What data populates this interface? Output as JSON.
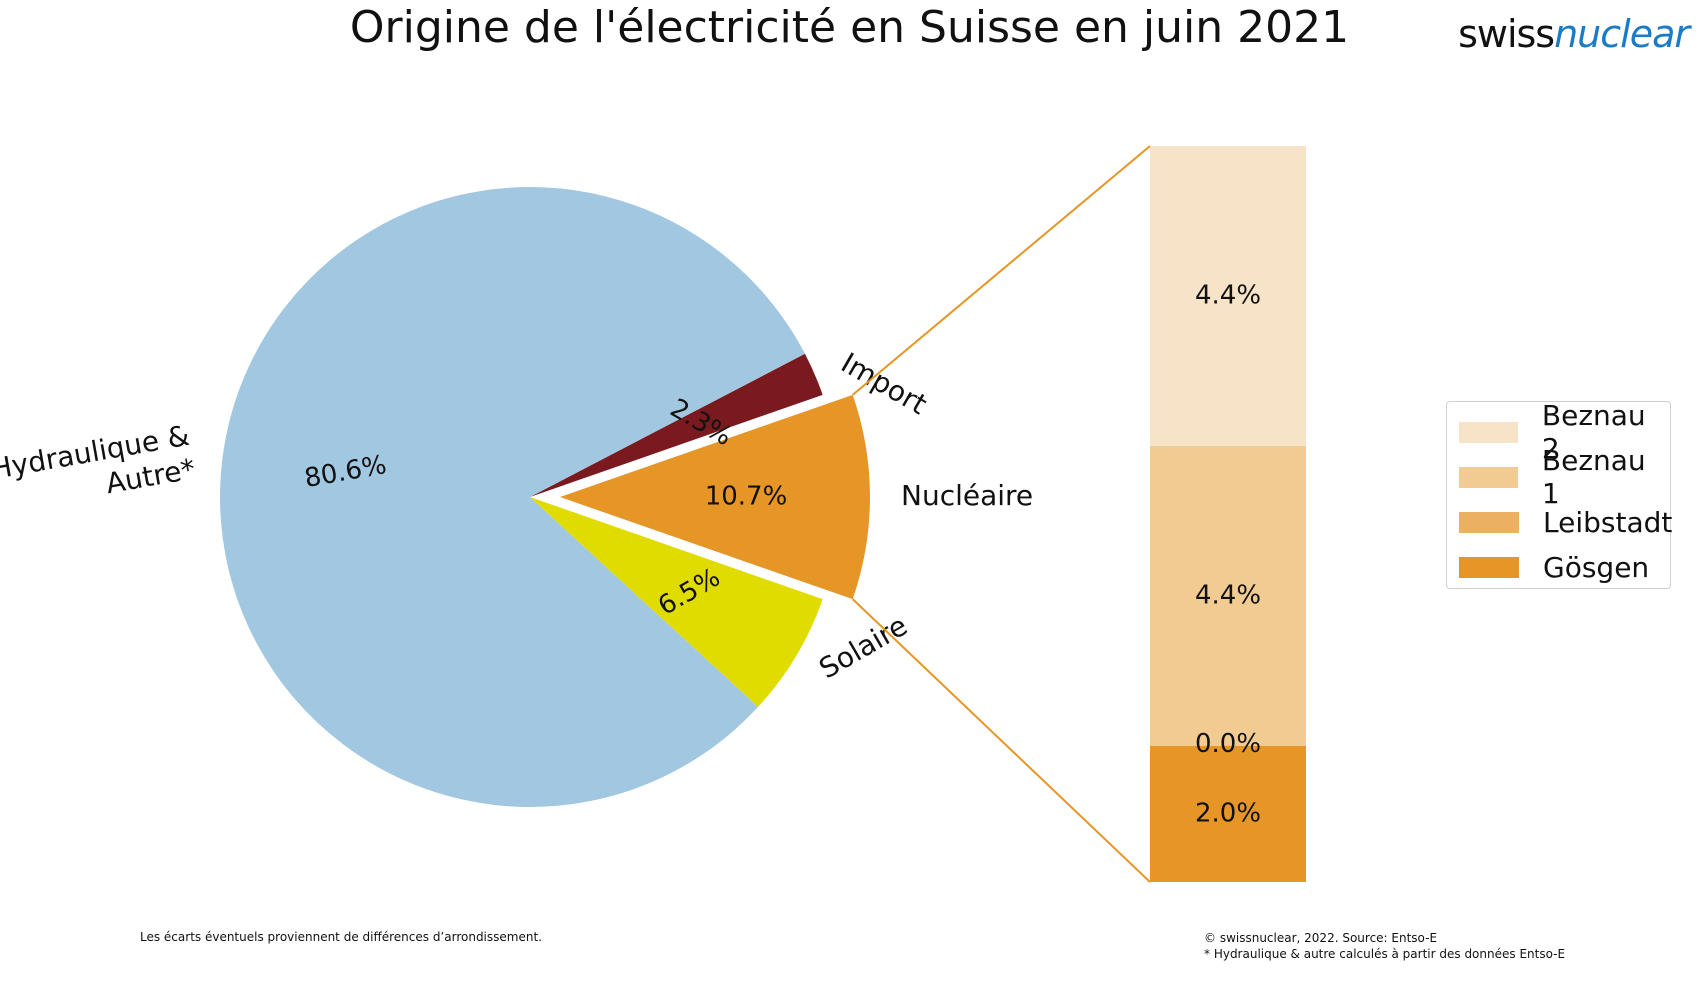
{
  "title": "Origine de l'électricité en Suisse en juin 2021",
  "logo": {
    "part1": "swiss",
    "part2": "nuclear"
  },
  "chart_data": [
    {
      "type": "pie",
      "slices": [
        {
          "label": "Hydraulique & Autre*",
          "value": 80.6,
          "value_label": "80.6%",
          "color": "#a2c7e0"
        },
        {
          "label": "Solaire",
          "value": 6.5,
          "value_label": "6.5%",
          "color": "#e0dc00"
        },
        {
          "label": "Nucléaire",
          "value": 10.7,
          "value_label": "10.7%",
          "color": "#e69626"
        },
        {
          "label": "Import",
          "value": 2.3,
          "value_label": "2.3%",
          "color": "#7a1a1f"
        }
      ]
    },
    {
      "type": "bar",
      "stacked": true,
      "series": [
        {
          "name": "Gösgen",
          "value": 2.0,
          "value_label": "2.0%",
          "color": "#e69626"
        },
        {
          "name": "Leibstadt",
          "value": 0.0,
          "value_label": "0.0%",
          "color": "#ebb060"
        },
        {
          "name": "Beznau 1",
          "value": 4.4,
          "value_label": "4.4%",
          "color": "#f2cb93"
        },
        {
          "name": "Beznau 2",
          "value": 4.4,
          "value_label": "4.4%",
          "color": "#f7e4c8"
        }
      ],
      "legend": {
        "position": "right",
        "order": [
          "Beznau 2",
          "Beznau 1",
          "Leibstadt",
          "Gösgen"
        ]
      },
      "connector_color": "#e69626"
    }
  ],
  "footnotes": {
    "left": "Les écarts éventuels proviennent de différences d’arrondissement.",
    "copyright": "© swissnuclear, 2022. Source: Entso-E",
    "asterisk": "* Hydraulique & autre calculés à partir des données Entso-E"
  }
}
